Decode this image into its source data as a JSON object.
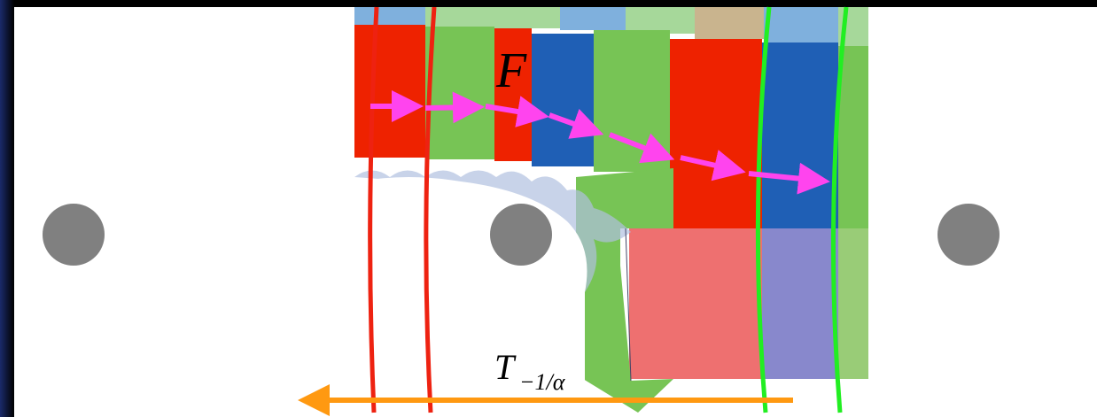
{
  "labels": {
    "f": "F",
    "t": "T",
    "t_sub": "−1/α"
  }
}
